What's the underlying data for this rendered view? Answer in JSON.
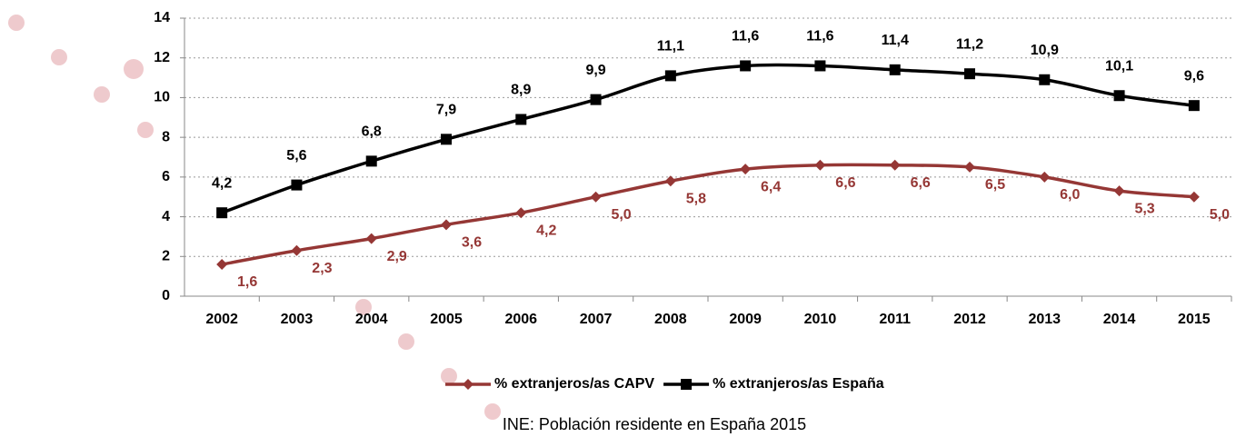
{
  "chart_data": {
    "type": "line",
    "categories": [
      "2002",
      "2003",
      "2004",
      "2005",
      "2006",
      "2007",
      "2008",
      "2009",
      "2010",
      "2011",
      "2012",
      "2013",
      "2014",
      "2015"
    ],
    "series": [
      {
        "name": "% extranjeros/as CAPV",
        "color": "#953735",
        "marker": "diamond",
        "values": [
          1.6,
          2.3,
          2.9,
          3.6,
          4.2,
          5.0,
          5.8,
          6.4,
          6.6,
          6.6,
          6.5,
          6.0,
          5.3,
          5.0
        ],
        "value_labels": [
          "1,6",
          "2,3",
          "2,9",
          "3,6",
          "4,2",
          "5,0",
          "5,8",
          "6,4",
          "6,6",
          "6,6",
          "6,5",
          "6,0",
          "5,3",
          "5,0"
        ]
      },
      {
        "name": "% extranjeros/as España",
        "color": "#000000",
        "marker": "square",
        "values": [
          4.2,
          5.6,
          6.8,
          7.9,
          8.9,
          9.9,
          11.1,
          11.6,
          11.6,
          11.4,
          11.2,
          10.9,
          10.1,
          9.6
        ],
        "value_labels": [
          "4,2",
          "5,6",
          "6,8",
          "7,9",
          "8,9",
          "9,9",
          "11,1",
          "11,6",
          "11,6",
          "11,4",
          "11,2",
          "10,9",
          "10,1",
          "9,6"
        ]
      }
    ],
    "ylim": [
      0,
      14
    ],
    "yticks": [
      0,
      2,
      4,
      6,
      8,
      10,
      12,
      14
    ],
    "grid": true,
    "legend": "bottom",
    "caption": "INE: Población residente en España 2015"
  }
}
